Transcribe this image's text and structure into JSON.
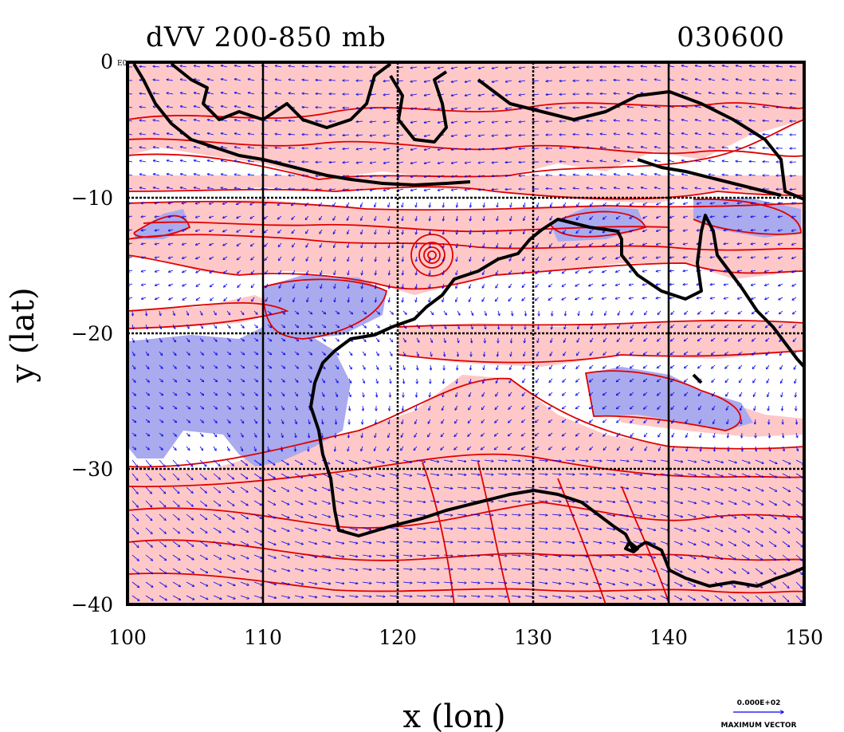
{
  "title_left": "dVV 200-850 mb",
  "title_right": "030600",
  "x_axis_label": "x (lon)",
  "y_axis_label": "y (lat)",
  "x_ticks": [
    "100",
    "110",
    "120",
    "130",
    "140",
    "150"
  ],
  "y_ticks": [
    "0",
    "−10",
    "−20",
    "−30",
    "−40"
  ],
  "corner_exponent": "E0",
  "reference_vector": {
    "value": "0.000E+02",
    "label": "MAXIMUM VECTOR"
  },
  "map_extent": {
    "lon_range": [
      100,
      150
    ],
    "lat_range": [
      -40,
      0
    ]
  },
  "colors": {
    "positive_shading": "#ffc8c8",
    "negative_shading": "#aaaaee",
    "contour": "#e00000",
    "vector": "#0000ee",
    "coastline": "#000000",
    "grid": "#000000"
  }
}
